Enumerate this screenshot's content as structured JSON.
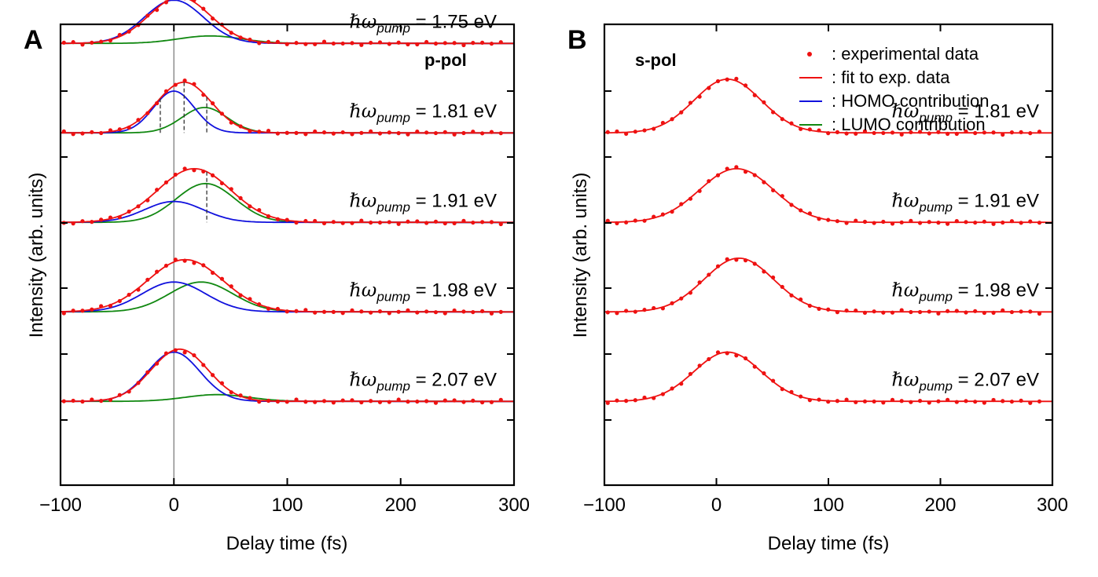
{
  "chart_data": [
    {
      "panel": "A",
      "type": "line",
      "polarization": "p-pol",
      "xlabel": "Delay time (fs)",
      "ylabel": "Intensity (arb. units)",
      "xlim": [
        -100,
        300
      ],
      "xticks": [
        -100,
        0,
        100,
        200,
        300
      ],
      "xtick_labels": [
        "−100",
        "0",
        "100",
        "200",
        "300"
      ],
      "series": [
        {
          "name": "ℏωpump = 1.75 eV",
          "label": "= 1.75 eV",
          "baseline": 0.15,
          "scale": 0.62,
          "fit": {
            "amp": 0.62,
            "center": 5,
            "sigma": 27
          },
          "homo": {
            "amp": 0.58,
            "center": 0,
            "sigma": 26
          },
          "lumo": {
            "amp": 0.1,
            "center": 32,
            "sigma": 28
          },
          "markers": []
        },
        {
          "name": "ℏωpump = 1.81 eV",
          "label": "= 1.81 eV",
          "baseline": 1.35,
          "scale": 0.68,
          "fit": {
            "amp": 0.68,
            "center": 9,
            "sigma": 24
          },
          "homo": {
            "amp": 0.56,
            "center": 0,
            "sigma": 18
          },
          "lumo": {
            "amp": 0.34,
            "center": 27,
            "sigma": 20
          },
          "markers": [
            -12,
            9,
            29
          ]
        },
        {
          "name": "ℏωpump = 1.91 eV",
          "label": "= 1.91 eV",
          "baseline": 2.55,
          "scale": 0.72,
          "fit": {
            "amp": 0.72,
            "center": 18,
            "sigma": 32
          },
          "homo": {
            "amp": 0.28,
            "center": 0,
            "sigma": 26
          },
          "lumo": {
            "amp": 0.52,
            "center": 28,
            "sigma": 26
          },
          "markers": [
            29
          ]
        },
        {
          "name": "ℏωpump = 1.98 eV",
          "label": "= 1.98 eV",
          "baseline": 3.75,
          "scale": 0.7,
          "fit": {
            "amp": 0.7,
            "center": 10,
            "sigma": 33
          },
          "homo": {
            "amp": 0.4,
            "center": 0,
            "sigma": 28
          },
          "lumo": {
            "amp": 0.4,
            "center": 24,
            "sigma": 28
          },
          "markers": []
        },
        {
          "name": "ℏωpump = 2.07 eV",
          "label": "= 2.07 eV",
          "baseline": 4.95,
          "scale": 0.7,
          "fit": {
            "amp": 0.7,
            "center": 5,
            "sigma": 25
          },
          "homo": {
            "amp": 0.66,
            "center": 0,
            "sigma": 23
          },
          "lumo": {
            "amp": 0.09,
            "center": 38,
            "sigma": 28
          },
          "markers": []
        }
      ]
    },
    {
      "panel": "B",
      "type": "line",
      "polarization": "s-pol",
      "xlabel": "Delay time (fs)",
      "ylabel": "Intensity (arb. units)",
      "xlim": [
        -100,
        300
      ],
      "xticks": [
        -100,
        0,
        100,
        200,
        300
      ],
      "xtick_labels": [
        "−100",
        "0",
        "100",
        "200",
        "300"
      ],
      "series": [
        {
          "name": "ℏωpump = 1.81 eV",
          "label": "= 1.81 eV",
          "baseline": 1.35,
          "scale": 0.72,
          "fit": {
            "amp": 0.72,
            "center": 10,
            "sigma": 30
          }
        },
        {
          "name": "ℏωpump = 1.91 eV",
          "label": "= 1.91 eV",
          "baseline": 2.55,
          "scale": 0.72,
          "fit": {
            "amp": 0.72,
            "center": 18,
            "sigma": 33
          }
        },
        {
          "name": "ℏωpump = 1.98 eV",
          "label": "= 1.98 eV",
          "baseline": 3.75,
          "scale": 0.72,
          "fit": {
            "amp": 0.72,
            "center": 20,
            "sigma": 31
          }
        },
        {
          "name": "ℏωpump = 2.07 eV",
          "label": "= 2.07 eV",
          "baseline": 4.95,
          "scale": 0.66,
          "fit": {
            "amp": 0.66,
            "center": 10,
            "sigma": 30
          }
        }
      ]
    }
  ],
  "panel_labels": {
    "a": "A",
    "b": "B"
  },
  "legend": [
    {
      "key": "experimental",
      "text": ": experimental data",
      "kind": "dot",
      "color": "#ee1111"
    },
    {
      "key": "fit",
      "text": ": fit to exp. data",
      "kind": "line",
      "color": "#ee1111"
    },
    {
      "key": "homo",
      "text": ": HOMO contribution",
      "kind": "line",
      "color": "#1111dd"
    },
    {
      "key": "lumo",
      "text": ": LUMO contribution",
      "kind": "line",
      "color": "#118811"
    }
  ],
  "colors": {
    "experimental": "#ee1111",
    "fit": "#ee1111",
    "homo": "#1111dd",
    "lumo": "#118811",
    "time_zero": "#888888"
  },
  "symbols": {
    "hbar_omega": "ℏω",
    "pump": "pump"
  }
}
